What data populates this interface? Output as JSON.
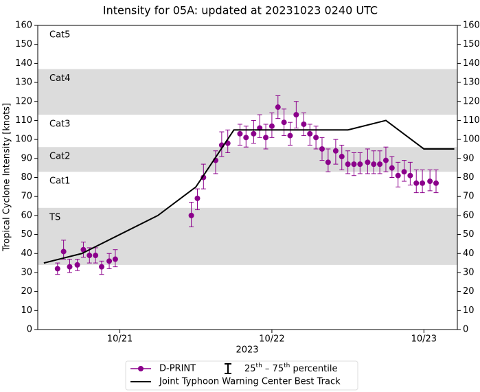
{
  "chart_data": {
    "type": "line",
    "title": "Intensity for 05A: updated at 20231023 0240 UTC",
    "x_label": "2023",
    "y_label": "Tropical Cyclone Intensity [knots]",
    "xlim": [
      20.46,
      23.22
    ],
    "xticks": [
      {
        "value": 21,
        "label": "10/21"
      },
      {
        "value": 22,
        "label": "10/22"
      },
      {
        "value": 23,
        "label": "10/23"
      }
    ],
    "ylim": [
      0,
      160
    ],
    "yticks": [
      0,
      10,
      20,
      30,
      40,
      50,
      60,
      70,
      80,
      90,
      100,
      110,
      120,
      130,
      140,
      150,
      160
    ],
    "bands": [
      {
        "label": "TS",
        "from": 34,
        "shaded": true
      },
      {
        "label": "Cat1",
        "from": 64,
        "shaded": false
      },
      {
        "label": "Cat2",
        "from": 83,
        "shaded": true
      },
      {
        "label": "Cat3",
        "from": 96,
        "shaded": false
      },
      {
        "label": "Cat4",
        "from": 113,
        "shaded": true
      },
      {
        "label": "Cat5",
        "from": 137,
        "shaded": false
      }
    ],
    "band_color": "#dcdcdc",
    "series": [
      {
        "name": "D-PRINT",
        "type": "errorbar",
        "color": "#8b008b",
        "x": [
          20.59,
          20.63,
          20.67,
          20.72,
          20.76,
          20.8,
          20.84,
          20.88,
          20.93,
          20.97,
          21.47,
          21.51,
          21.55,
          21.63,
          21.67,
          21.71,
          21.79,
          21.83,
          21.88,
          21.92,
          21.96,
          22.0,
          22.04,
          22.08,
          22.12,
          22.16,
          22.21,
          22.25,
          22.29,
          22.33,
          22.37,
          22.42,
          22.46,
          22.5,
          22.54,
          22.58,
          22.63,
          22.67,
          22.71,
          22.75,
          22.79,
          22.83,
          22.87,
          22.91,
          22.95,
          22.99,
          23.04,
          23.08
        ],
        "values": [
          32,
          41,
          33,
          34,
          42,
          39,
          39,
          33,
          36,
          37,
          60,
          69,
          80,
          89,
          97,
          98,
          103,
          101,
          103,
          106,
          101,
          107,
          117,
          109,
          102,
          113,
          108,
          103,
          101,
          95,
          88,
          94,
          91,
          87,
          87,
          87,
          88,
          87,
          87,
          89,
          85,
          81,
          83,
          81,
          77,
          77,
          78,
          77
        ],
        "lower": [
          29,
          37,
          30,
          31,
          38,
          35,
          35,
          29,
          32,
          33,
          54,
          63,
          74,
          82,
          91,
          93,
          97,
          96,
          98,
          101,
          95,
          101,
          111,
          102,
          97,
          106,
          102,
          97,
          95,
          89,
          83,
          87,
          84,
          82,
          81,
          82,
          82,
          82,
          82,
          83,
          80,
          75,
          78,
          76,
          72,
          72,
          73,
          72
        ],
        "upper": [
          35,
          47,
          37,
          37,
          46,
          43,
          43,
          36,
          40,
          42,
          67,
          74,
          87,
          94,
          104,
          105,
          108,
          107,
          110,
          113,
          108,
          114,
          123,
          116,
          109,
          120,
          114,
          108,
          107,
          101,
          95,
          100,
          97,
          94,
          93,
          93,
          95,
          94,
          94,
          96,
          91,
          88,
          89,
          88,
          84,
          84,
          84,
          84
        ]
      },
      {
        "name": "Joint Typhoon Warning Center Best Track",
        "type": "line",
        "color": "#000000",
        "x": [
          20.5,
          20.75,
          21.0,
          21.25,
          21.5,
          21.75,
          22.0,
          22.25,
          22.5,
          22.75,
          23.0,
          23.2
        ],
        "values": [
          35,
          40,
          50,
          60,
          75,
          105,
          105,
          105,
          105,
          110,
          95,
          95
        ]
      }
    ],
    "error_legend": [
      {
        "text": "25"
      },
      {
        "text": "th",
        "sup": true
      },
      {
        "text": " – 75"
      },
      {
        "text": "th",
        "sup": true
      },
      {
        "text": " percentile"
      }
    ]
  }
}
